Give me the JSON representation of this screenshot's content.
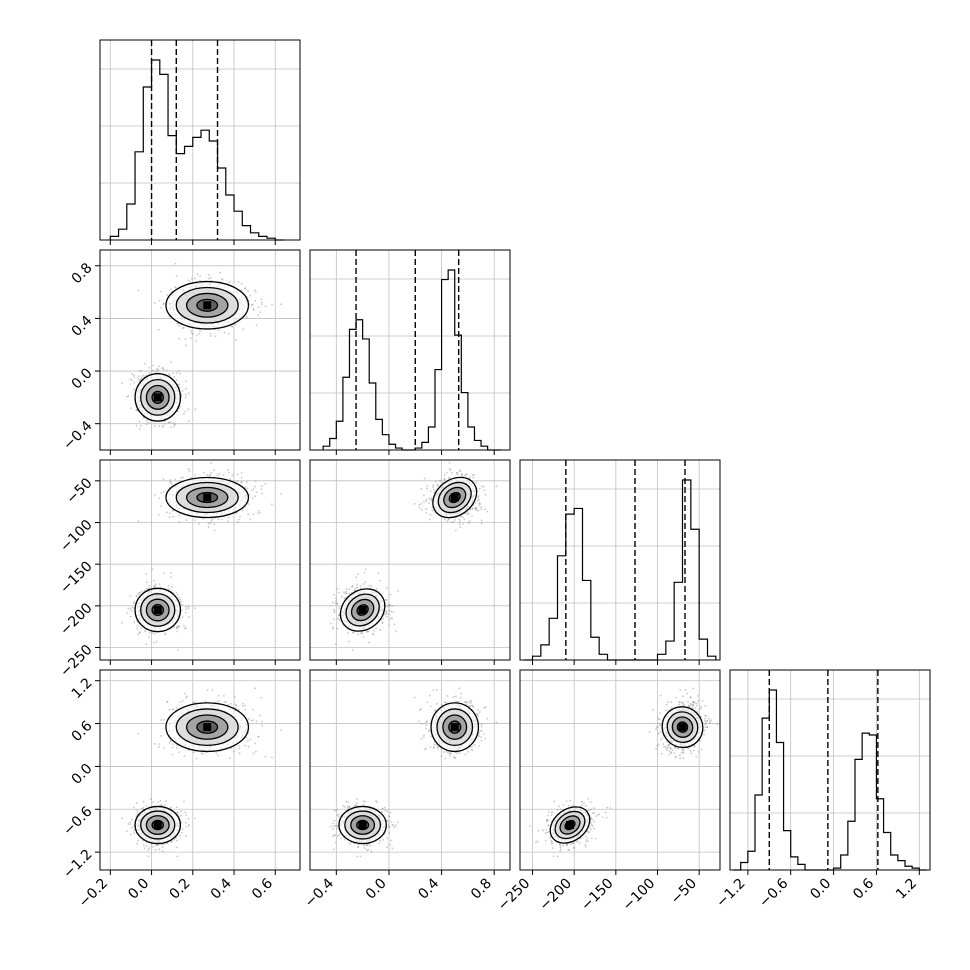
{
  "figure": {
    "description_type": "corner-plot",
    "colors": {
      "line": "#000000",
      "grid": "#bfbfbf",
      "scatter": "#888888"
    }
  },
  "chart_data": {
    "type": "corner",
    "grid": true,
    "parameters": [
      {
        "range": [
          -0.25,
          0.72
        ],
        "ticks": [
          -0.2,
          0.0,
          0.2,
          0.4,
          0.6
        ],
        "tick_labels": [
          "−0.2",
          "0.0",
          "0.2",
          "0.4",
          "0.6"
        ],
        "quantiles": [
          0.0,
          0.12,
          0.32
        ],
        "modes": [
          {
            "w": 0.52,
            "mu": 0.03,
            "s": 0.055
          },
          {
            "w": 0.48,
            "mu": 0.27,
            "s": 0.1
          }
        ],
        "histogram": {
          "bin_edges": [
            -0.2,
            -0.16,
            -0.12,
            -0.08,
            -0.04,
            0.0,
            0.04,
            0.08,
            0.12,
            0.16,
            0.2,
            0.24,
            0.28,
            0.32,
            0.36,
            0.4,
            0.44,
            0.48,
            0.52,
            0.56,
            0.6,
            0.64
          ],
          "counts": [
            0.02,
            0.06,
            0.2,
            0.49,
            0.85,
            1.0,
            0.92,
            0.58,
            0.48,
            0.52,
            0.57,
            0.61,
            0.55,
            0.4,
            0.25,
            0.16,
            0.08,
            0.04,
            0.02,
            0.01,
            0.0
          ]
        }
      },
      {
        "range": [
          -0.6,
          0.92
        ],
        "ticks": [
          -0.4,
          0.0,
          0.4,
          0.8
        ],
        "tick_labels": [
          "−0.4",
          "0.0",
          "0.4",
          "0.8"
        ],
        "quantiles": [
          -0.25,
          0.2,
          0.53
        ],
        "modes": [
          {
            "w": 0.5,
            "mu": -0.2,
            "s": 0.09
          },
          {
            "w": 0.5,
            "mu": 0.5,
            "s": 0.09
          }
        ],
        "histogram": {
          "bin_edges": [
            -0.5,
            -0.45,
            -0.4,
            -0.35,
            -0.3,
            -0.25,
            -0.2,
            -0.15,
            -0.1,
            -0.05,
            0.0,
            0.05,
            0.1,
            0.15,
            0.2,
            0.25,
            0.3,
            0.35,
            0.4,
            0.45,
            0.5,
            0.55,
            0.6,
            0.65,
            0.7,
            0.75,
            0.8,
            0.85
          ],
          "counts": [
            0.02,
            0.06,
            0.15,
            0.38,
            0.63,
            0.68,
            0.58,
            0.35,
            0.16,
            0.08,
            0.03,
            0.01,
            0.0,
            0.0,
            0.01,
            0.04,
            0.12,
            0.42,
            0.89,
            0.94,
            0.6,
            0.3,
            0.12,
            0.05,
            0.02,
            0.0,
            0.0
          ]
        }
      },
      {
        "range": [
          -265,
          -25
        ],
        "ticks": [
          -250,
          -200,
          -150,
          -100,
          -50
        ],
        "tick_labels": [
          "−250",
          "−200",
          "−150",
          "−100",
          "−50"
        ],
        "quantiles": [
          -210,
          -127,
          -67
        ],
        "modes": [
          {
            "w": 0.5,
            "mu": -205,
            "s": 13
          },
          {
            "w": 0.5,
            "mu": -70,
            "s": 12
          }
        ],
        "histogram": {
          "bin_edges": [
            -260,
            -250,
            -240,
            -230,
            -220,
            -210,
            -200,
            -190,
            -180,
            -170,
            -160,
            -150,
            -140,
            -130,
            -120,
            -110,
            -100,
            -90,
            -80,
            -70,
            -60,
            -50,
            -40,
            -30
          ],
          "counts": [
            0.0,
            0.02,
            0.08,
            0.22,
            0.55,
            0.77,
            0.8,
            0.42,
            0.12,
            0.03,
            0.0,
            0.0,
            0.0,
            0.0,
            0.0,
            0.0,
            0.03,
            0.1,
            0.41,
            0.95,
            0.69,
            0.11,
            0.02
          ]
        }
      },
      {
        "range": [
          -1.45,
          1.35
        ],
        "ticks": [
          -1.2,
          -0.6,
          0.0,
          0.6,
          1.2
        ],
        "tick_labels": [
          "−1.2",
          "−0.6",
          "0.0",
          "0.6",
          "1.2"
        ],
        "quantiles": [
          -0.9,
          -0.08,
          0.62
        ],
        "modes": [
          {
            "w": 0.5,
            "mu": -0.82,
            "s": 0.13
          },
          {
            "w": 0.5,
            "mu": 0.55,
            "s": 0.17
          }
        ],
        "histogram": {
          "bin_edges": [
            -1.4,
            -1.3,
            -1.2,
            -1.1,
            -1.0,
            -0.9,
            -0.8,
            -0.7,
            -0.6,
            -0.5,
            -0.4,
            -0.3,
            -0.2,
            -0.1,
            0.0,
            0.1,
            0.2,
            0.3,
            0.4,
            0.5,
            0.6,
            0.7,
            0.8,
            0.9,
            1.0,
            1.1,
            1.2,
            1.3
          ],
          "counts": [
            0.0,
            0.04,
            0.1,
            0.4,
            0.81,
            0.96,
            0.68,
            0.21,
            0.07,
            0.03,
            0.0,
            0.0,
            0.0,
            0.0,
            0.01,
            0.08,
            0.26,
            0.59,
            0.73,
            0.72,
            0.38,
            0.2,
            0.08,
            0.05,
            0.02,
            0.01,
            0.0
          ]
        }
      }
    ],
    "pair_correlations": {
      "2-1": 0.35,
      "3-2": 0.5
    }
  }
}
